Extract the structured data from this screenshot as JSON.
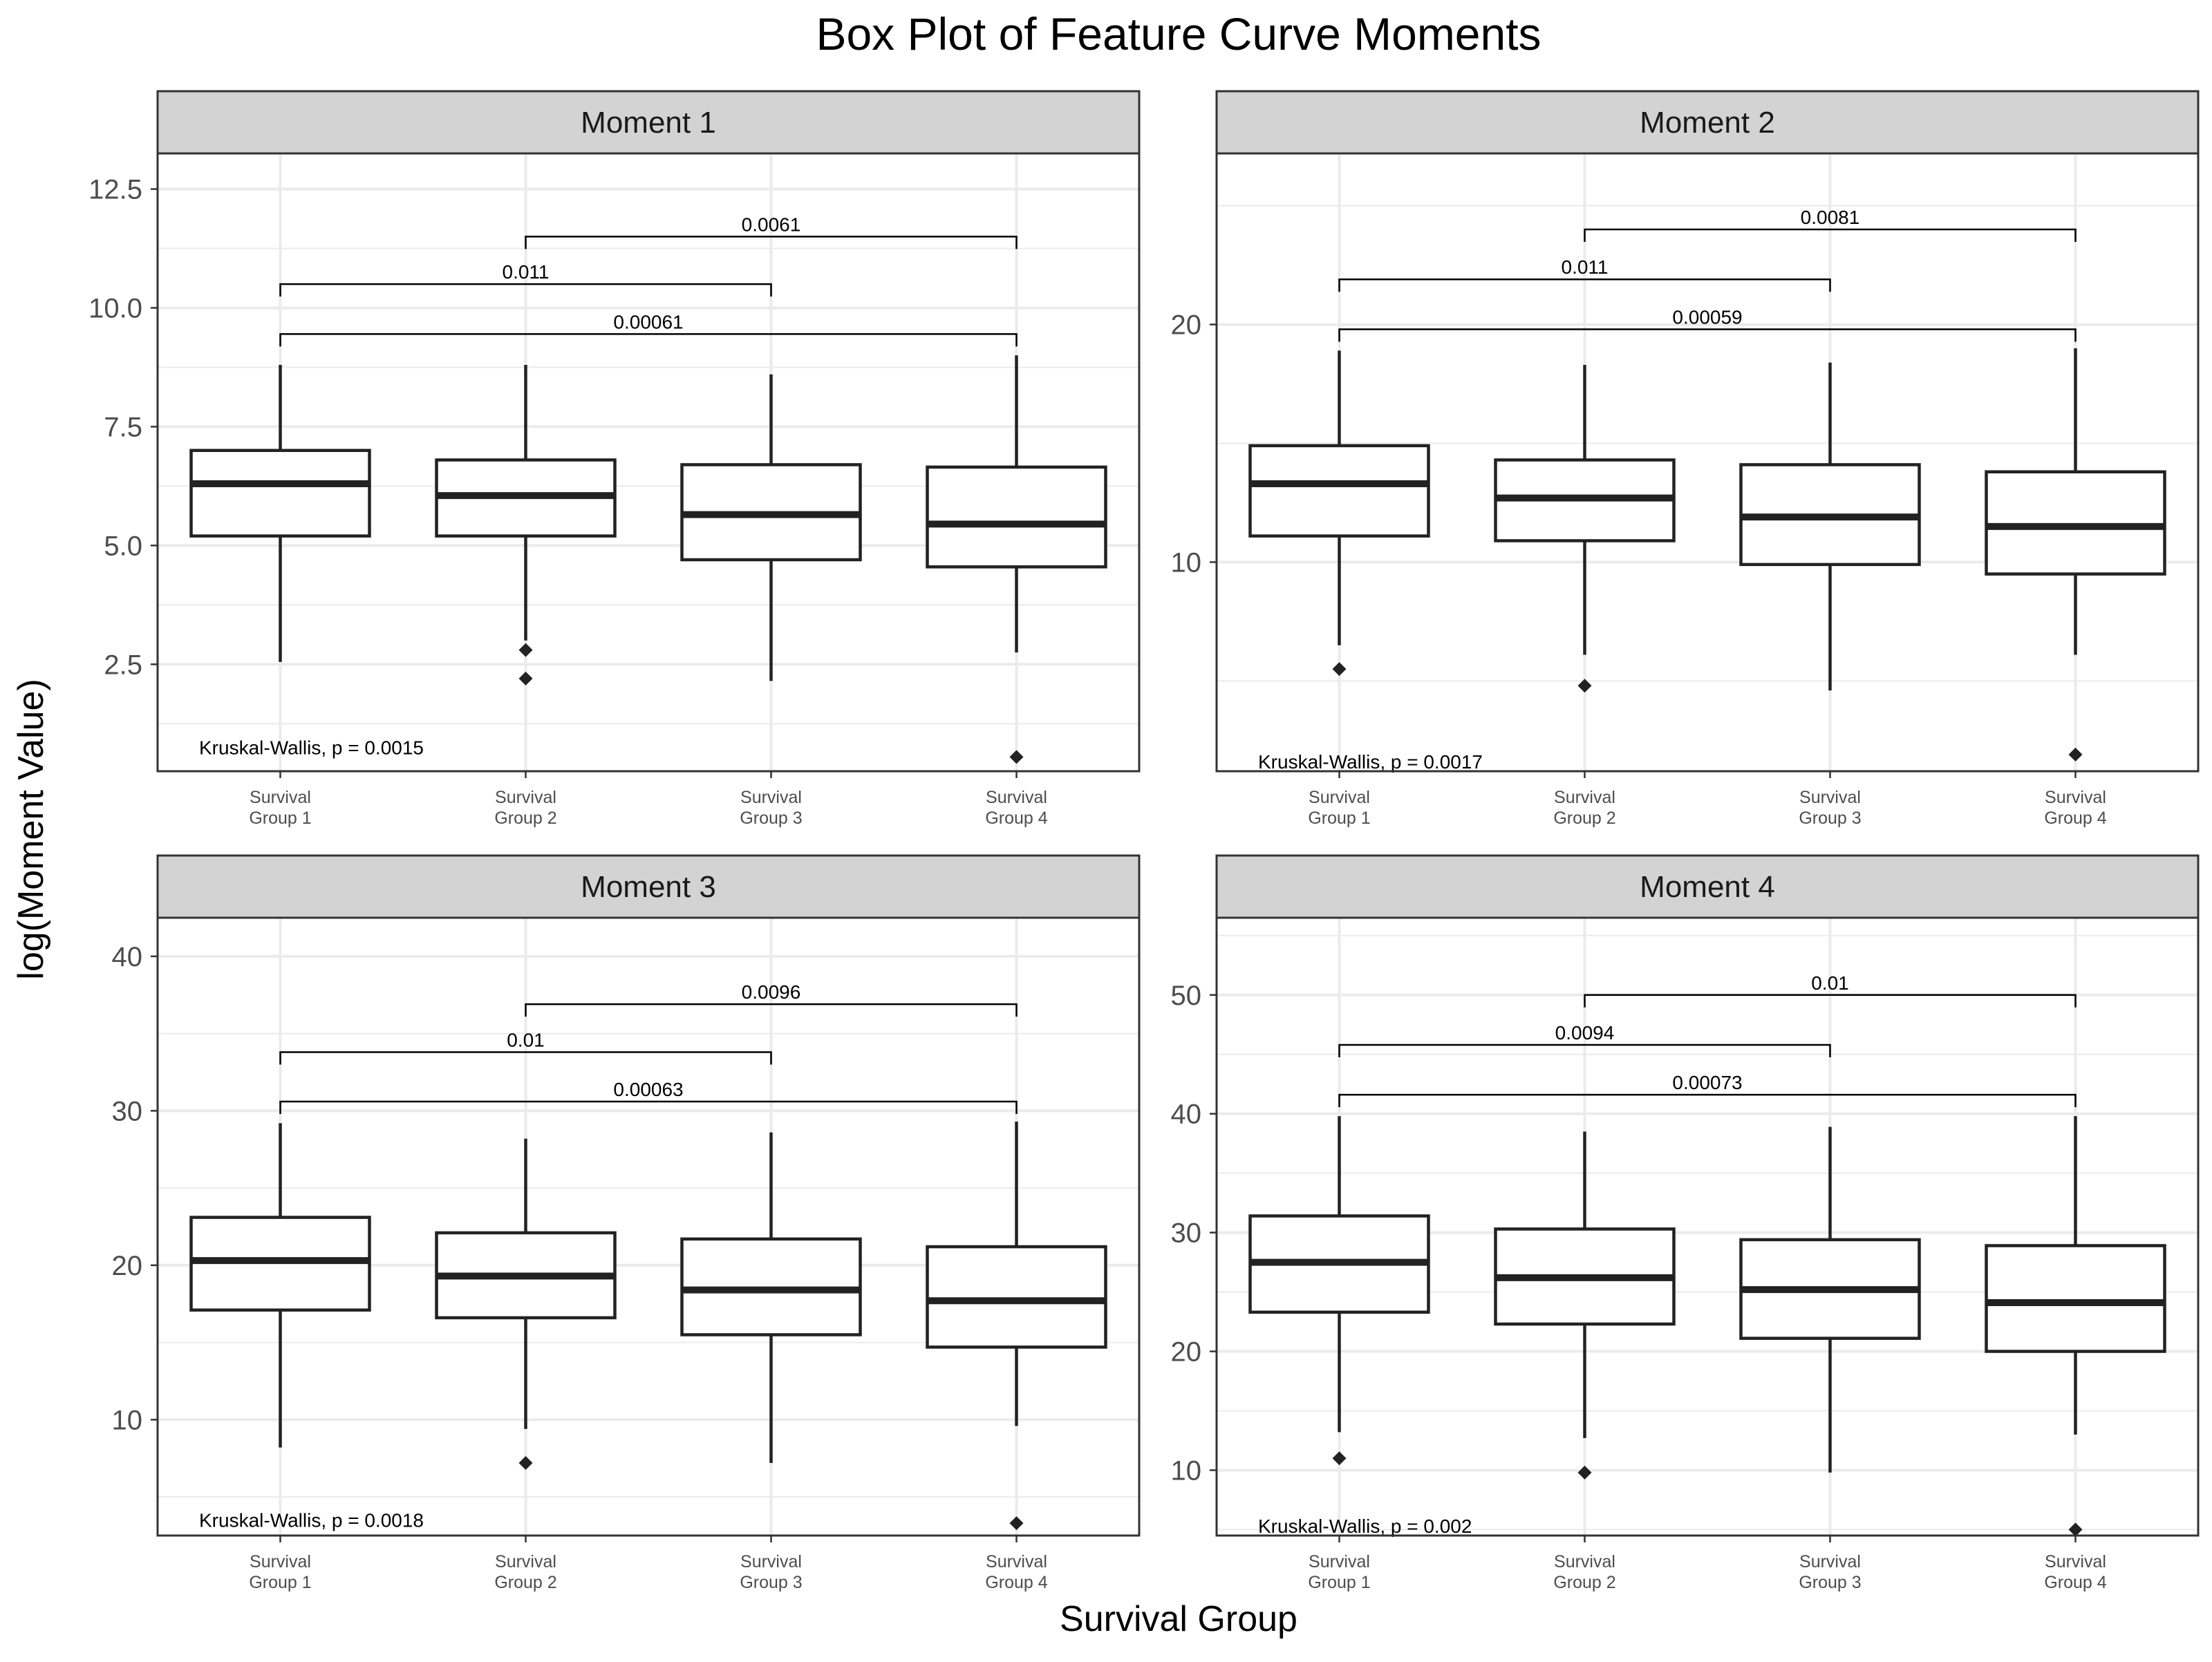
{
  "chart_data": {
    "type": "box",
    "title": "Box Plot of Feature Curve Moments",
    "xlabel": "Survival Group",
    "ylabel": "log(Moment Value)",
    "categories": [
      "Survival Group 1",
      "Survival Group 2",
      "Survival Group 3",
      "Survival Group 4"
    ],
    "category_lines": [
      [
        "Survival",
        "Group 1"
      ],
      [
        "Survival",
        "Group 2"
      ],
      [
        "Survival",
        "Group 3"
      ],
      [
        "Survival",
        "Group 4"
      ]
    ],
    "panels": [
      {
        "strip": "Moment 1",
        "ylim": [
          0.25,
          13.25
        ],
        "yticks": [
          2.5,
          5.0,
          7.5,
          10.0,
          12.5
        ],
        "ytick_labels": [
          "2.5",
          "5.0",
          "7.5",
          "10.0",
          "12.5"
        ],
        "boxes": [
          {
            "q1": 5.2,
            "median": 6.3,
            "q3": 7.0,
            "whisker_low": 2.55,
            "whisker_high": 8.8,
            "outliers": []
          },
          {
            "q1": 5.2,
            "median": 6.05,
            "q3": 6.8,
            "whisker_low": 3.0,
            "whisker_high": 8.8,
            "outliers": [
              2.8,
              2.2
            ]
          },
          {
            "q1": 4.7,
            "median": 5.65,
            "q3": 6.7,
            "whisker_low": 2.15,
            "whisker_high": 8.6,
            "outliers": []
          },
          {
            "q1": 4.55,
            "median": 5.45,
            "q3": 6.65,
            "whisker_low": 2.75,
            "whisker_high": 9.0,
            "outliers": [
              0.55
            ]
          }
        ],
        "brackets": [
          {
            "from": 2,
            "to": 4,
            "label": "0.0061",
            "y": 11.5
          },
          {
            "from": 1,
            "to": 3,
            "label": "0.011",
            "y": 10.5
          },
          {
            "from": 1,
            "to": 4,
            "label": "0.00061",
            "y": 9.45
          }
        ],
        "test_label": "Kruskal-Wallis, p = 0.0015",
        "test_y": 0.75
      },
      {
        "strip": "Moment 2",
        "ylim": [
          1.2,
          27.2
        ],
        "yticks": [
          10,
          20
        ],
        "ytick_labels": [
          "10",
          "20"
        ],
        "boxes": [
          {
            "q1": 11.1,
            "median": 13.3,
            "q3": 14.9,
            "whisker_low": 6.5,
            "whisker_high": 18.9,
            "outliers": [
              5.5
            ]
          },
          {
            "q1": 10.9,
            "median": 12.7,
            "q3": 14.3,
            "whisker_low": 6.1,
            "whisker_high": 18.3,
            "outliers": [
              4.8
            ]
          },
          {
            "q1": 9.9,
            "median": 11.9,
            "q3": 14.1,
            "whisker_low": 4.6,
            "whisker_high": 18.4,
            "outliers": []
          },
          {
            "q1": 9.5,
            "median": 11.5,
            "q3": 13.8,
            "whisker_low": 6.1,
            "whisker_high": 19.0,
            "outliers": [
              1.9
            ]
          }
        ],
        "brackets": [
          {
            "from": 2,
            "to": 4,
            "label": "0.0081",
            "y": 24.0
          },
          {
            "from": 1,
            "to": 3,
            "label": "0.011",
            "y": 21.9
          },
          {
            "from": 1,
            "to": 4,
            "label": "0.00059",
            "y": 19.8
          }
        ],
        "test_label": "Kruskal-Wallis, p = 0.0017",
        "test_y": 1.6
      },
      {
        "strip": "Moment 3",
        "ylim": [
          2.5,
          42.5
        ],
        "yticks": [
          10,
          20,
          30,
          40
        ],
        "ytick_labels": [
          "10",
          "20",
          "30",
          "40"
        ],
        "boxes": [
          {
            "q1": 17.1,
            "median": 20.3,
            "q3": 23.1,
            "whisker_low": 8.2,
            "whisker_high": 29.2,
            "outliers": []
          },
          {
            "q1": 16.6,
            "median": 19.3,
            "q3": 22.1,
            "whisker_low": 9.4,
            "whisker_high": 28.2,
            "outliers": [
              7.2
            ]
          },
          {
            "q1": 15.5,
            "median": 18.4,
            "q3": 21.7,
            "whisker_low": 7.2,
            "whisker_high": 28.6,
            "outliers": []
          },
          {
            "q1": 14.7,
            "median": 17.7,
            "q3": 21.2,
            "whisker_low": 9.6,
            "whisker_high": 29.3,
            "outliers": [
              3.3
            ]
          }
        ],
        "brackets": [
          {
            "from": 2,
            "to": 4,
            "label": "0.0096",
            "y": 36.9
          },
          {
            "from": 1,
            "to": 3,
            "label": "0.01",
            "y": 33.8
          },
          {
            "from": 1,
            "to": 4,
            "label": "0.00063",
            "y": 30.6
          }
        ],
        "test_label": "Kruskal-Wallis, p = 0.0018",
        "test_y": 3.5
      },
      {
        "strip": "Moment 4",
        "ylim": [
          4.5,
          56.5
        ],
        "yticks": [
          10,
          20,
          30,
          40,
          50
        ],
        "ytick_labels": [
          "10",
          "20",
          "30",
          "40",
          "50"
        ],
        "boxes": [
          {
            "q1": 23.3,
            "median": 27.5,
            "q3": 31.4,
            "whisker_low": 13.2,
            "whisker_high": 39.8,
            "outliers": [
              11.0
            ]
          },
          {
            "q1": 22.3,
            "median": 26.2,
            "q3": 30.3,
            "whisker_low": 12.7,
            "whisker_high": 38.5,
            "outliers": [
              9.8
            ]
          },
          {
            "q1": 21.1,
            "median": 25.2,
            "q3": 29.4,
            "whisker_low": 9.8,
            "whisker_high": 38.9,
            "outliers": []
          },
          {
            "q1": 20.0,
            "median": 24.1,
            "q3": 28.9,
            "whisker_low": 13.0,
            "whisker_high": 39.8,
            "outliers": [
              5.0
            ]
          }
        ],
        "brackets": [
          {
            "from": 2,
            "to": 4,
            "label": "0.01",
            "y": 50.0
          },
          {
            "from": 1,
            "to": 3,
            "label": "0.0094",
            "y": 45.8
          },
          {
            "from": 1,
            "to": 4,
            "label": "0.00073",
            "y": 41.6
          }
        ],
        "test_label": "Kruskal-Wallis, p = 0.002",
        "test_y": 5.3
      }
    ],
    "grid": true,
    "legend": "none",
    "colors": {
      "box_fill": "#ffffff",
      "box_stroke": "#222222",
      "strip_fill": "#d3d3d3",
      "grid": "#ebebeb",
      "panel_border": "#333333"
    }
  }
}
